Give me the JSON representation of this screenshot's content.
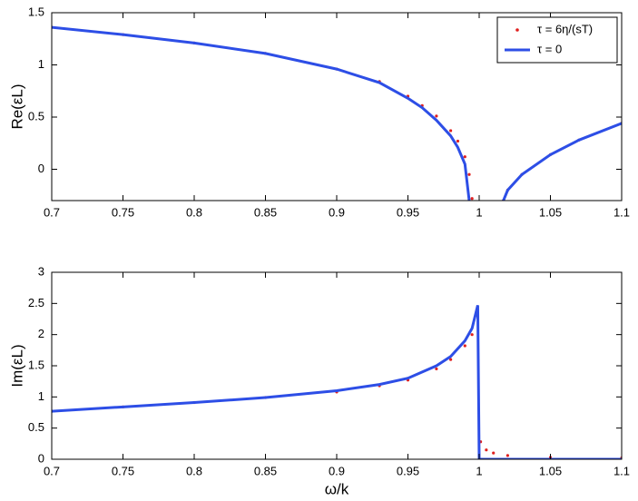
{
  "chart_data": [
    {
      "type": "line",
      "ylabel": "Re(εL)",
      "x": [
        0.7,
        0.75,
        0.8,
        0.85,
        0.9,
        0.93,
        0.95,
        0.96,
        0.97,
        0.98,
        0.985,
        0.99,
        0.993,
        0.995,
        1.017,
        1.02,
        1.03,
        1.05,
        1.07,
        1.1
      ],
      "series": [
        {
          "name": "τ = 6η/(sT)",
          "color": "#e0201e",
          "style": "dots",
          "values": [
            1.36,
            1.29,
            1.21,
            1.11,
            0.96,
            0.84,
            0.7,
            0.61,
            0.51,
            0.37,
            0.27,
            0.12,
            -0.05,
            -0.28,
            -0.3,
            -0.2,
            -0.05,
            0.14,
            0.28,
            0.44
          ]
        },
        {
          "name": "τ = 0",
          "color": "#2d4ee6",
          "style": "line",
          "values": [
            1.36,
            1.29,
            1.21,
            1.11,
            0.96,
            0.83,
            0.68,
            0.59,
            0.47,
            0.32,
            0.21,
            0.05,
            -0.3,
            null,
            -0.3,
            -0.2,
            -0.05,
            0.14,
            0.28,
            0.44
          ]
        }
      ],
      "xlim": [
        0.7,
        1.1
      ],
      "xticks": [
        0.7,
        0.75,
        0.8,
        0.85,
        0.9,
        0.95,
        1,
        1.05,
        1.1
      ],
      "ylim": [
        -0.3,
        1.5
      ],
      "yticks": [
        0,
        0.5,
        1,
        1.5
      ],
      "legend": "upper right"
    },
    {
      "type": "line",
      "ylabel": "Im(εL)",
      "xlabel": "ω/k",
      "x": [
        0.7,
        0.75,
        0.8,
        0.85,
        0.9,
        0.93,
        0.95,
        0.97,
        0.98,
        0.99,
        0.995,
        0.999,
        1.0,
        1.001,
        1.005,
        1.01,
        1.02,
        1.05,
        1.1
      ],
      "series": [
        {
          "name": "τ = 6η/(sT)",
          "color": "#e0201e",
          "style": "dots",
          "values": [
            0.77,
            0.84,
            0.91,
            0.99,
            1.08,
            1.18,
            1.27,
            1.45,
            1.6,
            1.82,
            2.0,
            2.3,
            null,
            0.28,
            0.15,
            0.1,
            0.06,
            0.03,
            0.02
          ]
        },
        {
          "name": "τ = 0",
          "color": "#2d4ee6",
          "style": "line",
          "values": [
            0.77,
            0.84,
            0.91,
            0.99,
            1.1,
            1.2,
            1.3,
            1.5,
            1.65,
            1.9,
            2.1,
            2.47,
            0,
            0,
            0,
            0,
            0,
            0,
            0
          ]
        }
      ],
      "xlim": [
        0.7,
        1.1
      ],
      "xticks": [
        0.7,
        0.75,
        0.8,
        0.85,
        0.9,
        0.95,
        1,
        1.05,
        1.1
      ],
      "ylim": [
        0,
        3
      ],
      "yticks": [
        0,
        0.5,
        1,
        1.5,
        2,
        2.5,
        3
      ]
    }
  ]
}
